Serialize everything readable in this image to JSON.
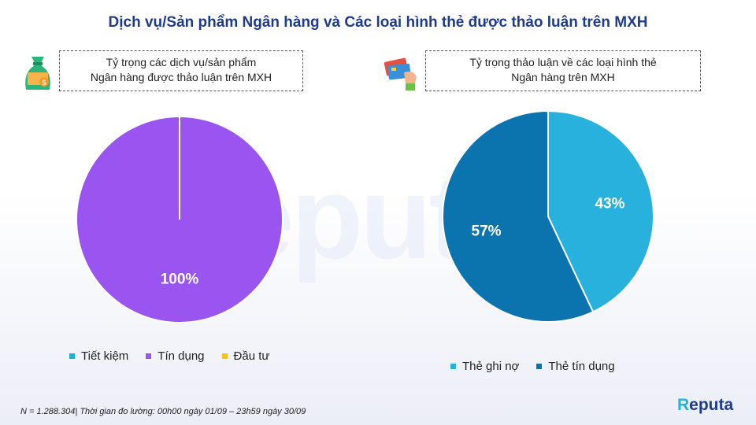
{
  "title": "Dịch vụ/Sản phẩm Ngân hàng và Các loại hình thẻ được thảo luận trên MXH",
  "watermark": "eputa",
  "colors": {
    "title": "#1f3b8c",
    "savings": "#17b3d8",
    "credit": "#9a55f0",
    "invest": "#f2c418",
    "debit_card": "#27b1dc",
    "credit_card": "#0b73ad"
  },
  "chart_data": [
    {
      "type": "pie",
      "title_lines": [
        "Tỷ trọng các dịch vụ/sản phẩm",
        "Ngân hàng được thảo luận trên MXH"
      ],
      "icon": "money-bag-icon",
      "slices": [
        {
          "label": "Tiết kiệm",
          "value": 0,
          "color": "#17b3d8"
        },
        {
          "label": "Tín dụng",
          "value": 100,
          "color": "#9a55f0"
        },
        {
          "label": "Đầu tư",
          "value": 0,
          "color": "#f2c418"
        }
      ],
      "data_labels": [
        "",
        "100%",
        ""
      ],
      "legend": [
        "Tiết kiệm",
        "Tín dụng",
        "Đầu tư"
      ]
    },
    {
      "type": "pie",
      "title_lines": [
        "Tỷ trọng thảo luận về các loại hình thẻ",
        "Ngân hàng trên MXH"
      ],
      "icon": "credit-card-hand-icon",
      "slices": [
        {
          "label": "Thẻ ghi nợ",
          "value": 43,
          "color": "#27b1dc"
        },
        {
          "label": "Thẻ tín dụng",
          "value": 57,
          "color": "#0b73ad"
        }
      ],
      "data_labels": [
        "43%",
        "57%"
      ],
      "legend": [
        "Thẻ ghi nợ",
        "Thẻ tín dụng"
      ]
    }
  ],
  "footnote": "N = 1.288.304| Thời gian đo lường: 00h00 ngày 01/09 – 23h59 ngày 30/09",
  "brand": {
    "mark": "R",
    "rest": "eputa"
  }
}
